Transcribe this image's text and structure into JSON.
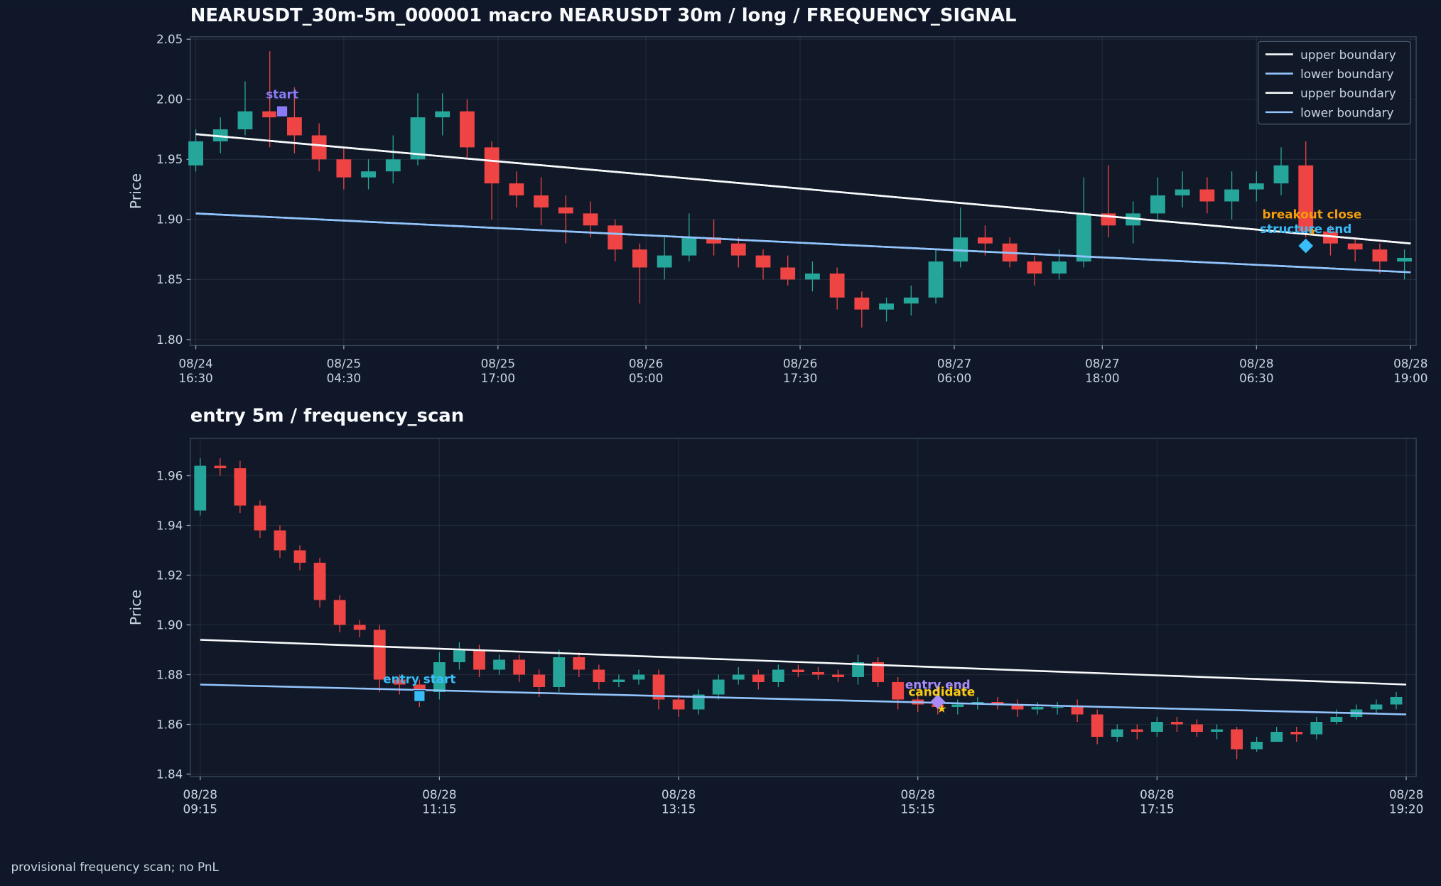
{
  "chart_data": [
    {
      "type": "candlestick",
      "title": "NEARUSDT_30m-5m_000001 macro NEARUSDT 30m / long / FREQUENCY_SIGNAL",
      "y_label": "Price",
      "up_color": "#26a69a",
      "down_color": "#ef4444",
      "grid": true,
      "legend": "upper right",
      "xlim": [
        -0.45,
        98.95
      ],
      "ylim": [
        1.795,
        2.052
      ],
      "xticks": [
        {
          "value": 0,
          "label": [
            "08/24",
            "16:30"
          ]
        },
        {
          "value": 12,
          "label": [
            "08/25",
            "04:30"
          ]
        },
        {
          "value": 24.5,
          "label": [
            "08/25",
            "17:00"
          ]
        },
        {
          "value": 36.5,
          "label": [
            "08/26",
            "05:00"
          ]
        },
        {
          "value": 49,
          "label": [
            "08/26",
            "17:30"
          ]
        },
        {
          "value": 61.5,
          "label": [
            "08/27",
            "06:00"
          ]
        },
        {
          "value": 73.5,
          "label": [
            "08/27",
            "18:00"
          ]
        },
        {
          "value": 86,
          "label": [
            "08/28",
            "06:30"
          ]
        },
        {
          "value": 98.5,
          "label": [
            "08/28",
            "19:00"
          ]
        }
      ],
      "yticks": [
        {
          "value": 1.8,
          "label": "1.80"
        },
        1.85,
        {
          "value": 1.9,
          "label": "1.90"
        },
        1.95,
        {
          "value": 2.0,
          "label": "2.00"
        },
        2.05
      ],
      "x": [
        0,
        2,
        4,
        6,
        8,
        10,
        12,
        14,
        16,
        18,
        20,
        22,
        24,
        26,
        28,
        30,
        32,
        34,
        36,
        38,
        40,
        42,
        44,
        46,
        48,
        50,
        52,
        54,
        56,
        58,
        60,
        62,
        64,
        66,
        68,
        70,
        72,
        74,
        76,
        78,
        80,
        82,
        84,
        86,
        88,
        90,
        92,
        94,
        96,
        98
      ],
      "open": [
        1.945,
        1.965,
        1.975,
        1.99,
        1.985,
        1.97,
        1.95,
        1.935,
        1.94,
        1.95,
        1.985,
        1.99,
        1.96,
        1.93,
        1.92,
        1.91,
        1.905,
        1.895,
        1.875,
        1.86,
        1.87,
        1.885,
        1.88,
        1.87,
        1.86,
        1.85,
        1.855,
        1.835,
        1.825,
        1.83,
        1.835,
        1.865,
        1.885,
        1.88,
        1.865,
        1.855,
        1.865,
        1.905,
        1.895,
        1.905,
        1.92,
        1.925,
        1.915,
        1.925,
        1.93,
        1.945,
        1.89,
        1.88,
        1.875,
        1.865
      ],
      "high": [
        1.975,
        1.985,
        2.015,
        2.04,
        2.01,
        1.98,
        1.96,
        1.95,
        1.97,
        2.005,
        2.005,
        2.0,
        1.965,
        1.94,
        1.935,
        1.92,
        1.915,
        1.9,
        1.88,
        1.885,
        1.905,
        1.9,
        1.885,
        1.875,
        1.87,
        1.865,
        1.86,
        1.84,
        1.835,
        1.845,
        1.875,
        1.91,
        1.895,
        1.885,
        1.87,
        1.875,
        1.935,
        1.945,
        1.915,
        1.935,
        1.94,
        1.935,
        1.94,
        1.94,
        1.96,
        1.965,
        1.895,
        1.885,
        1.88,
        1.875
      ],
      "low": [
        1.94,
        1.955,
        1.97,
        1.96,
        1.955,
        1.94,
        1.925,
        1.925,
        1.93,
        1.945,
        1.97,
        1.95,
        1.9,
        1.91,
        1.895,
        1.88,
        1.885,
        1.865,
        1.83,
        1.85,
        1.865,
        1.87,
        1.86,
        1.85,
        1.845,
        1.84,
        1.825,
        1.81,
        1.815,
        1.82,
        1.83,
        1.86,
        1.87,
        1.86,
        1.845,
        1.85,
        1.86,
        1.885,
        1.88,
        1.9,
        1.91,
        1.905,
        1.9,
        1.915,
        1.92,
        1.885,
        1.87,
        1.865,
        1.855,
        1.85
      ],
      "close": [
        1.965,
        1.975,
        1.99,
        1.985,
        1.97,
        1.95,
        1.935,
        1.94,
        1.95,
        1.985,
        1.99,
        1.96,
        1.93,
        1.92,
        1.91,
        1.905,
        1.895,
        1.875,
        1.86,
        1.87,
        1.885,
        1.88,
        1.87,
        1.86,
        1.85,
        1.855,
        1.835,
        1.825,
        1.83,
        1.835,
        1.865,
        1.885,
        1.88,
        1.865,
        1.855,
        1.865,
        1.905,
        1.895,
        1.905,
        1.92,
        1.925,
        1.915,
        1.925,
        1.93,
        1.945,
        1.89,
        1.88,
        1.875,
        1.865,
        1.868
      ],
      "series": [
        {
          "name": "upper boundary",
          "color": "#f8fafc",
          "x": [
            0,
            98.5
          ],
          "values": [
            1.971,
            1.88
          ]
        },
        {
          "name": "lower boundary",
          "color": "#93c5fd",
          "x": [
            0,
            98.5
          ],
          "values": [
            1.905,
            1.856
          ]
        },
        {
          "name": "upper boundary",
          "color": "#f8fafc",
          "x": [
            0,
            98.5
          ],
          "values": [
            1.971,
            1.88
          ]
        },
        {
          "name": "lower boundary",
          "color": "#93c5fd",
          "x": [
            0,
            98.5
          ],
          "values": [
            1.905,
            1.856
          ]
        }
      ],
      "markers": [
        {
          "label": "start",
          "shape": "square",
          "color": "#8b7cf6",
          "x": 7,
          "y": 1.99
        },
        {
          "label": "breakout close",
          "shape": "star",
          "color": "#f59e0b",
          "x": 90.5,
          "y": 1.89
        },
        {
          "label": "structure end",
          "shape": "diamond",
          "color": "#38bdf8",
          "x": 90,
          "y": 1.878
        }
      ]
    },
    {
      "type": "candlestick",
      "title": "entry 5m / frequency_scan",
      "y_label": "Price",
      "up_color": "#26a69a",
      "down_color": "#ef4444",
      "grid": true,
      "xlim": [
        -5,
        610
      ],
      "ylim": [
        1.839,
        1.975
      ],
      "xticks": [
        {
          "value": 0,
          "label": [
            "08/28",
            "09:15"
          ]
        },
        {
          "value": 120,
          "label": [
            "08/28",
            "11:15"
          ]
        },
        {
          "value": 240,
          "label": [
            "08/28",
            "13:15"
          ]
        },
        {
          "value": 360,
          "label": [
            "08/28",
            "15:15"
          ]
        },
        {
          "value": 480,
          "label": [
            "08/28",
            "17:15"
          ]
        },
        {
          "value": 605,
          "label": [
            "08/28",
            "19:20"
          ]
        }
      ],
      "yticks": [
        1.84,
        1.86,
        1.88,
        {
          "value": 1.9,
          "label": "1.90"
        },
        1.92,
        1.94,
        1.96
      ],
      "x": [
        0,
        10,
        20,
        30,
        40,
        50,
        60,
        70,
        80,
        90,
        100,
        110,
        120,
        130,
        140,
        150,
        160,
        170,
        180,
        190,
        200,
        210,
        220,
        230,
        240,
        250,
        260,
        270,
        280,
        290,
        300,
        310,
        320,
        330,
        340,
        350,
        360,
        370,
        380,
        390,
        400,
        410,
        420,
        430,
        440,
        450,
        460,
        470,
        480,
        490,
        500,
        510,
        520,
        530,
        540,
        550,
        560,
        570,
        580,
        590,
        600
      ],
      "open": [
        1.946,
        1.964,
        1.963,
        1.948,
        1.938,
        1.93,
        1.925,
        1.91,
        1.9,
        1.898,
        1.878,
        1.876,
        1.873,
        1.885,
        1.89,
        1.882,
        1.886,
        1.88,
        1.875,
        1.887,
        1.882,
        1.877,
        1.878,
        1.88,
        1.87,
        1.866,
        1.872,
        1.878,
        1.88,
        1.877,
        1.882,
        1.881,
        1.88,
        1.879,
        1.885,
        1.877,
        1.87,
        1.868,
        1.867,
        1.868,
        1.869,
        1.868,
        1.866,
        1.867,
        1.867,
        1.864,
        1.855,
        1.858,
        1.857,
        1.861,
        1.86,
        1.857,
        1.858,
        1.85,
        1.853,
        1.857,
        1.856,
        1.861,
        1.863,
        1.866,
        1.868
      ],
      "high": [
        1.967,
        1.967,
        1.966,
        1.95,
        1.94,
        1.932,
        1.927,
        1.912,
        1.902,
        1.9,
        1.88,
        1.878,
        1.889,
        1.893,
        1.892,
        1.888,
        1.888,
        1.882,
        1.89,
        1.889,
        1.884,
        1.88,
        1.882,
        1.882,
        1.872,
        1.874,
        1.88,
        1.883,
        1.882,
        1.884,
        1.884,
        1.883,
        1.882,
        1.888,
        1.887,
        1.879,
        1.872,
        1.87,
        1.87,
        1.871,
        1.871,
        1.87,
        1.869,
        1.869,
        1.87,
        1.866,
        1.86,
        1.86,
        1.863,
        1.863,
        1.862,
        1.86,
        1.859,
        1.855,
        1.859,
        1.859,
        1.863,
        1.866,
        1.868,
        1.87,
        1.873
      ],
      "low": [
        1.944,
        1.96,
        1.945,
        1.935,
        1.927,
        1.922,
        1.907,
        1.897,
        1.895,
        1.873,
        1.872,
        1.867,
        1.87,
        1.882,
        1.879,
        1.88,
        1.877,
        1.871,
        1.873,
        1.879,
        1.874,
        1.875,
        1.876,
        1.866,
        1.863,
        1.864,
        1.87,
        1.876,
        1.874,
        1.875,
        1.879,
        1.878,
        1.877,
        1.876,
        1.875,
        1.866,
        1.865,
        1.864,
        1.864,
        1.866,
        1.866,
        1.863,
        1.864,
        1.864,
        1.861,
        1.852,
        1.853,
        1.854,
        1.855,
        1.857,
        1.855,
        1.854,
        1.846,
        1.849,
        1.853,
        1.853,
        1.854,
        1.86,
        1.862,
        1.864,
        1.866
      ],
      "close": [
        1.964,
        1.963,
        1.948,
        1.938,
        1.93,
        1.925,
        1.91,
        1.9,
        1.898,
        1.878,
        1.876,
        1.873,
        1.885,
        1.89,
        1.882,
        1.886,
        1.88,
        1.875,
        1.887,
        1.882,
        1.877,
        1.878,
        1.88,
        1.87,
        1.866,
        1.872,
        1.878,
        1.88,
        1.877,
        1.882,
        1.881,
        1.88,
        1.879,
        1.885,
        1.877,
        1.87,
        1.868,
        1.867,
        1.868,
        1.869,
        1.868,
        1.866,
        1.867,
        1.867,
        1.864,
        1.855,
        1.858,
        1.857,
        1.861,
        1.86,
        1.857,
        1.858,
        1.85,
        1.853,
        1.857,
        1.856,
        1.861,
        1.863,
        1.866,
        1.868,
        1.871
      ],
      "series": [
        {
          "name": "upper boundary",
          "color": "#f8fafc",
          "x": [
            0,
            605
          ],
          "values": [
            1.894,
            1.876
          ]
        },
        {
          "name": "lower boundary",
          "color": "#93c5fd",
          "x": [
            0,
            605
          ],
          "values": [
            1.876,
            1.864
          ]
        }
      ],
      "markers": [
        {
          "label": "entry start",
          "shape": "square",
          "color": "#38bdf8",
          "x": 110,
          "y": 1.8714
        },
        {
          "label": "entry end",
          "shape": "diamond",
          "color": "#a78bfa",
          "x": 370,
          "y": 1.8691
        },
        {
          "label": "candidate",
          "shape": "star",
          "color": "#facc15",
          "x": 372,
          "y": 1.8662
        }
      ]
    }
  ],
  "footer": "provisional frequency scan; no PnL"
}
